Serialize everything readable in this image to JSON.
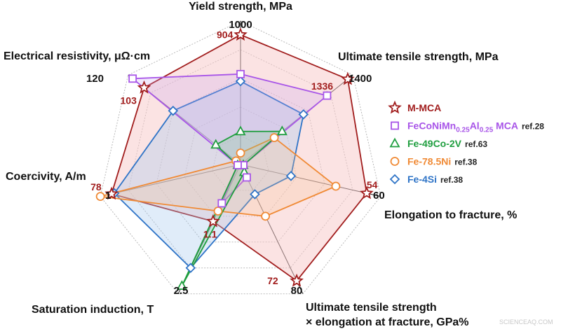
{
  "chart_data": {
    "type": "radar",
    "axes": [
      {
        "label_lines": [
          "Yield strength, MPa"
        ],
        "max_label": "1000",
        "max": 1000,
        "min": 0
      },
      {
        "label_lines": [
          "Ultimate tensile strength, MPa"
        ],
        "max_label": "1400",
        "max": 1400,
        "min": 0
      },
      {
        "label_lines": [
          "Elongation to fracture, %"
        ],
        "max_label": "60",
        "max": 60,
        "min": 0
      },
      {
        "label_lines": [
          "Ultimate tensile strength",
          "× elongation at fracture, GPa%"
        ],
        "max_label": "80",
        "max": 80,
        "min": 0
      },
      {
        "label_lines": [
          "Saturation induction, T"
        ],
        "max_label": "2.5",
        "max": 2.5,
        "min": 0
      },
      {
        "label_lines": [
          "Coercivity, A/m"
        ],
        "max_label": "1",
        "max": 1,
        "min": 0
      },
      {
        "label_lines": [
          "Electrical resistivity, μΩ·cm"
        ],
        "max_label": "120",
        "max": 120,
        "min": 0
      }
    ],
    "series": [
      {
        "name": "M-MCA",
        "ref": "",
        "color": "#a11d1d",
        "fill": "#f8c8c8",
        "fill_opacity": 0.5,
        "marker": "star",
        "values": [
          0.904,
          0.954,
          0.9,
          0.9,
          0.44,
          0.92,
          0.858
        ],
        "point_labels": [
          "904",
          "1336",
          "54",
          "72",
          "1.1",
          "78",
          "103"
        ]
      },
      {
        "name_main": "FeCoNiMn",
        "name_sub1": "0.25",
        "name_mid": "Al",
        "name_sub2": "0.25",
        "name_end": " MCA",
        "ref": "ref.28",
        "color": "#a855e8",
        "fill": "#c9a3ee",
        "fill_opacity": 0.25,
        "marker": "square",
        "values": [
          0.63,
          0.77,
          0.02,
          0.1,
          0.3,
          0.02,
          0.96
        ]
      },
      {
        "name": "Fe-49Co-2V",
        "ref": "ref.63",
        "color": "#1f9e3f",
        "fill": "#7ccf8d",
        "fill_opacity": 0.25,
        "marker": "triangle",
        "values": [
          0.23,
          0.37,
          0.02,
          0.06,
          0.94,
          0.02,
          0.22
        ]
      },
      {
        "name": "Fe-78.5Ni",
        "ref": "ref.38",
        "color": "#f08a35",
        "fill": "#f6c593",
        "fill_opacity": 0.25,
        "marker": "circle",
        "values": [
          0.08,
          0.3,
          0.68,
          0.4,
          0.36,
          1.0,
          0.04
        ]
      },
      {
        "name": "Fe-4Si",
        "ref": "ref.38",
        "color": "#2f74c7",
        "fill": "#a7c8ee",
        "fill_opacity": 0.35,
        "marker": "diamond",
        "values": [
          0.58,
          0.56,
          0.36,
          0.23,
          0.8,
          0.9,
          0.6
        ]
      }
    ],
    "grid": true,
    "legend_position": "right"
  },
  "watermark": "SCIENCEAQ.COM"
}
